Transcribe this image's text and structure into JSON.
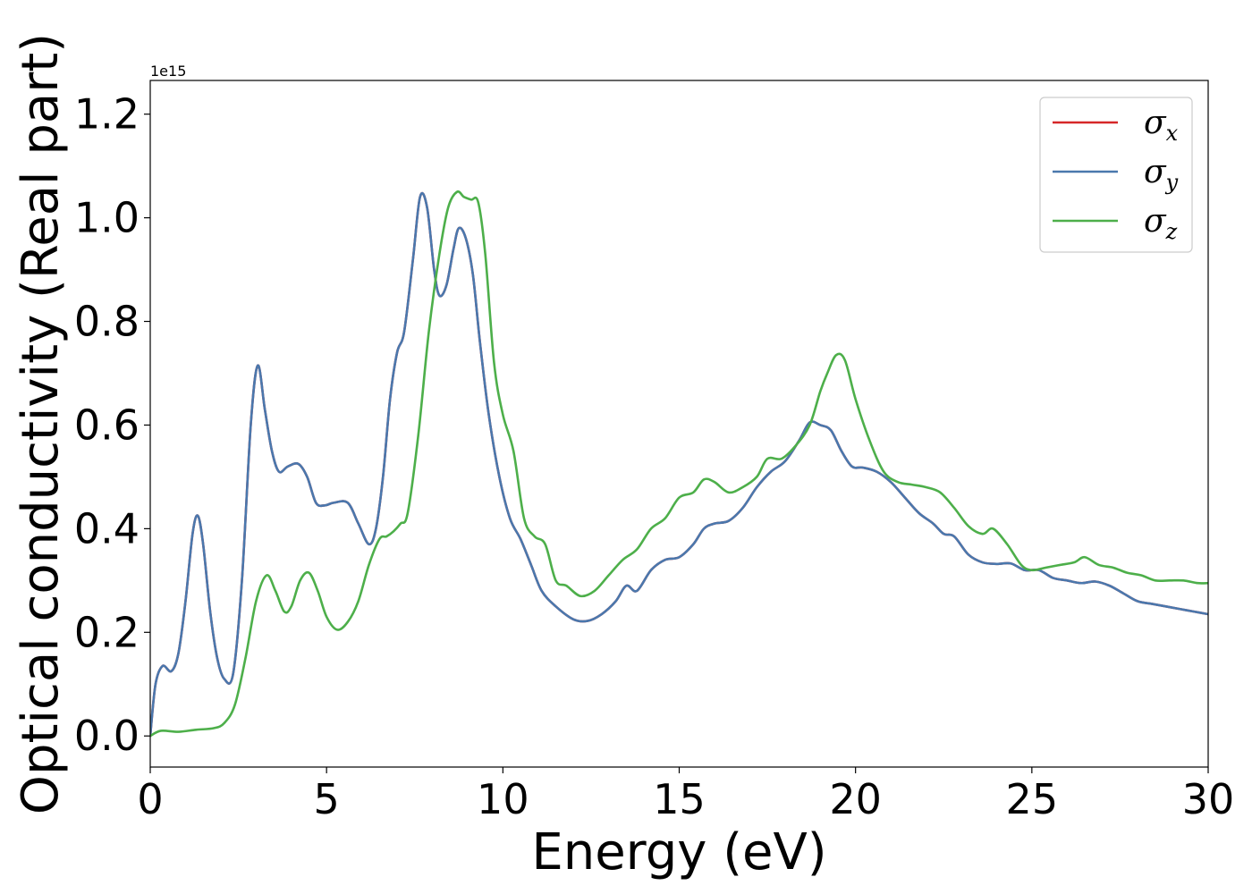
{
  "chart_data": {
    "type": "line",
    "xlabel": "Energy (eV)",
    "ylabel": "Optical conductivity (Real part)",
    "y_offset_label": "1e15",
    "xlim": [
      0,
      30
    ],
    "ylim": [
      -0.06,
      1.265
    ],
    "x_ticks": [
      0,
      5,
      10,
      15,
      20,
      25,
      30
    ],
    "y_ticks": [
      0.0,
      0.2,
      0.4,
      0.6,
      0.8,
      1.0,
      1.2
    ],
    "x_tick_labels": [
      "0",
      "5",
      "10",
      "15",
      "20",
      "25",
      "30"
    ],
    "y_tick_labels": [
      "0.0",
      "0.2",
      "0.4",
      "0.6",
      "0.8",
      "1.0",
      "1.2"
    ],
    "grid": false,
    "legend_position": "top-right",
    "series": [
      {
        "name": "σ",
        "subscript": "x",
        "color": "#d62728",
        "x": [
          0,
          0.15,
          0.35,
          0.6,
          0.8,
          1.0,
          1.2,
          1.35,
          1.5,
          1.7,
          1.9,
          2.1,
          2.35,
          2.6,
          2.85,
          3.05,
          3.25,
          3.45,
          3.65,
          3.9,
          4.2,
          4.45,
          4.7,
          4.95,
          5.2,
          5.6,
          5.9,
          6.2,
          6.4,
          6.6,
          6.8,
          7.0,
          7.2,
          7.45,
          7.65,
          7.85,
          8.05,
          8.2,
          8.4,
          8.6,
          8.75,
          8.95,
          9.15,
          9.35,
          9.6,
          9.9,
          10.2,
          10.5,
          10.8,
          11.1,
          11.5,
          12.0,
          12.4,
          12.8,
          13.2,
          13.5,
          13.8,
          14.2,
          14.6,
          15.0,
          15.4,
          15.7,
          16.0,
          16.4,
          16.8,
          17.2,
          17.6,
          18.0,
          18.4,
          18.7,
          19.0,
          19.3,
          19.6,
          19.9,
          20.2,
          20.6,
          21.0,
          21.4,
          21.8,
          22.2,
          22.5,
          22.8,
          23.2,
          23.6,
          24.0,
          24.4,
          24.8,
          25.2,
          25.6,
          26.0,
          26.4,
          26.8,
          27.2,
          27.6,
          28.0,
          28.4,
          28.8,
          29.2,
          29.6,
          30.0
        ],
        "values": [
          0.0,
          0.1,
          0.135,
          0.125,
          0.16,
          0.26,
          0.39,
          0.425,
          0.37,
          0.24,
          0.15,
          0.11,
          0.12,
          0.3,
          0.6,
          0.715,
          0.63,
          0.55,
          0.51,
          0.52,
          0.525,
          0.5,
          0.45,
          0.445,
          0.45,
          0.45,
          0.41,
          0.37,
          0.4,
          0.5,
          0.65,
          0.74,
          0.78,
          0.92,
          1.04,
          1.02,
          0.9,
          0.85,
          0.87,
          0.94,
          0.98,
          0.96,
          0.89,
          0.76,
          0.62,
          0.5,
          0.42,
          0.38,
          0.33,
          0.28,
          0.25,
          0.225,
          0.222,
          0.235,
          0.26,
          0.29,
          0.28,
          0.32,
          0.34,
          0.345,
          0.37,
          0.4,
          0.41,
          0.415,
          0.44,
          0.48,
          0.51,
          0.53,
          0.57,
          0.605,
          0.6,
          0.59,
          0.55,
          0.52,
          0.518,
          0.51,
          0.49,
          0.46,
          0.43,
          0.41,
          0.39,
          0.385,
          0.35,
          0.335,
          0.332,
          0.333,
          0.32,
          0.32,
          0.305,
          0.3,
          0.295,
          0.298,
          0.29,
          0.275,
          0.26,
          0.255,
          0.25,
          0.245,
          0.24,
          0.235
        ]
      },
      {
        "name": "σ",
        "subscript": "y",
        "color": "#4a78ad",
        "x": [
          0,
          0.15,
          0.35,
          0.6,
          0.8,
          1.0,
          1.2,
          1.35,
          1.5,
          1.7,
          1.9,
          2.1,
          2.35,
          2.6,
          2.85,
          3.05,
          3.25,
          3.45,
          3.65,
          3.9,
          4.2,
          4.45,
          4.7,
          4.95,
          5.2,
          5.6,
          5.9,
          6.2,
          6.4,
          6.6,
          6.8,
          7.0,
          7.2,
          7.45,
          7.65,
          7.85,
          8.05,
          8.2,
          8.4,
          8.6,
          8.75,
          8.95,
          9.15,
          9.35,
          9.6,
          9.9,
          10.2,
          10.5,
          10.8,
          11.1,
          11.5,
          12.0,
          12.4,
          12.8,
          13.2,
          13.5,
          13.8,
          14.2,
          14.6,
          15.0,
          15.4,
          15.7,
          16.0,
          16.4,
          16.8,
          17.2,
          17.6,
          18.0,
          18.4,
          18.7,
          19.0,
          19.3,
          19.6,
          19.9,
          20.2,
          20.6,
          21.0,
          21.4,
          21.8,
          22.2,
          22.5,
          22.8,
          23.2,
          23.6,
          24.0,
          24.4,
          24.8,
          25.2,
          25.6,
          26.0,
          26.4,
          26.8,
          27.2,
          27.6,
          28.0,
          28.4,
          28.8,
          29.2,
          29.6,
          30.0
        ],
        "values": [
          0.0,
          0.1,
          0.135,
          0.125,
          0.16,
          0.26,
          0.39,
          0.425,
          0.37,
          0.24,
          0.15,
          0.11,
          0.12,
          0.3,
          0.6,
          0.715,
          0.63,
          0.55,
          0.51,
          0.52,
          0.525,
          0.5,
          0.45,
          0.445,
          0.45,
          0.45,
          0.41,
          0.37,
          0.4,
          0.5,
          0.65,
          0.74,
          0.78,
          0.92,
          1.04,
          1.02,
          0.9,
          0.85,
          0.87,
          0.94,
          0.98,
          0.96,
          0.89,
          0.76,
          0.62,
          0.5,
          0.42,
          0.38,
          0.33,
          0.28,
          0.25,
          0.225,
          0.222,
          0.235,
          0.26,
          0.29,
          0.28,
          0.32,
          0.34,
          0.345,
          0.37,
          0.4,
          0.41,
          0.415,
          0.44,
          0.48,
          0.51,
          0.53,
          0.57,
          0.605,
          0.6,
          0.59,
          0.55,
          0.52,
          0.518,
          0.51,
          0.49,
          0.46,
          0.43,
          0.41,
          0.39,
          0.385,
          0.35,
          0.335,
          0.332,
          0.333,
          0.32,
          0.32,
          0.305,
          0.3,
          0.295,
          0.298,
          0.29,
          0.275,
          0.26,
          0.255,
          0.25,
          0.245,
          0.24,
          0.235
        ]
      },
      {
        "name": "σ",
        "subscript": "z",
        "color": "#4daf4a",
        "x": [
          0,
          0.3,
          0.8,
          1.3,
          1.8,
          2.1,
          2.4,
          2.7,
          3.0,
          3.3,
          3.55,
          3.8,
          4.0,
          4.25,
          4.5,
          4.75,
          5.0,
          5.3,
          5.6,
          5.9,
          6.2,
          6.5,
          6.7,
          6.9,
          7.1,
          7.3,
          7.6,
          7.9,
          8.2,
          8.45,
          8.7,
          8.9,
          9.1,
          9.3,
          9.5,
          9.75,
          10.0,
          10.3,
          10.6,
          10.9,
          11.2,
          11.5,
          11.8,
          12.2,
          12.6,
          13.0,
          13.4,
          13.8,
          14.2,
          14.6,
          15.0,
          15.4,
          15.7,
          16.0,
          16.4,
          16.8,
          17.2,
          17.5,
          17.9,
          18.3,
          18.7,
          19.0,
          19.2,
          19.45,
          19.7,
          20.0,
          20.4,
          20.8,
          21.2,
          21.6,
          22.0,
          22.4,
          22.8,
          23.2,
          23.6,
          23.9,
          24.3,
          24.7,
          25.0,
          25.4,
          25.8,
          26.2,
          26.5,
          26.9,
          27.3,
          27.7,
          28.1,
          28.5,
          28.9,
          29.3,
          29.7,
          30.0
        ],
        "values": [
          0.0,
          0.01,
          0.008,
          0.012,
          0.015,
          0.025,
          0.06,
          0.15,
          0.26,
          0.31,
          0.28,
          0.24,
          0.25,
          0.3,
          0.315,
          0.28,
          0.23,
          0.205,
          0.22,
          0.26,
          0.33,
          0.38,
          0.385,
          0.395,
          0.41,
          0.43,
          0.58,
          0.78,
          0.93,
          1.02,
          1.05,
          1.04,
          1.035,
          1.03,
          0.93,
          0.72,
          0.62,
          0.55,
          0.42,
          0.385,
          0.37,
          0.3,
          0.29,
          0.27,
          0.28,
          0.31,
          0.34,
          0.36,
          0.4,
          0.42,
          0.46,
          0.47,
          0.495,
          0.49,
          0.47,
          0.48,
          0.5,
          0.535,
          0.535,
          0.56,
          0.6,
          0.665,
          0.7,
          0.735,
          0.725,
          0.65,
          0.57,
          0.51,
          0.49,
          0.485,
          0.48,
          0.47,
          0.44,
          0.405,
          0.39,
          0.4,
          0.37,
          0.33,
          0.32,
          0.325,
          0.33,
          0.335,
          0.345,
          0.33,
          0.325,
          0.315,
          0.31,
          0.3,
          0.3,
          0.3,
          0.295,
          0.295
        ]
      }
    ]
  }
}
